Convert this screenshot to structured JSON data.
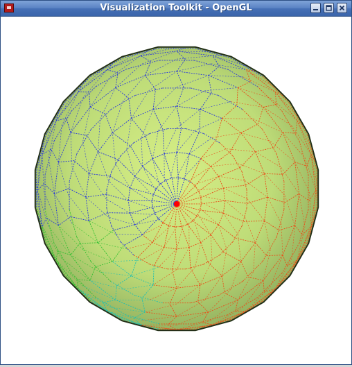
{
  "window": {
    "title": "Visualization Toolkit - OpenGL",
    "controls": [
      "minimize",
      "maximize",
      "close"
    ]
  },
  "scene": {
    "description_icons": [
      "app-icon"
    ],
    "background": "#ffffff",
    "sphere_fill": "#c4e27f",
    "sphere_edge": "#3b4a2a",
    "mesh_colors": {
      "pole": "#ff0000",
      "warm": "#e8501a",
      "cool": "#2b3ad8",
      "mid": "#20c0b0",
      "green": "#30c030"
    }
  }
}
